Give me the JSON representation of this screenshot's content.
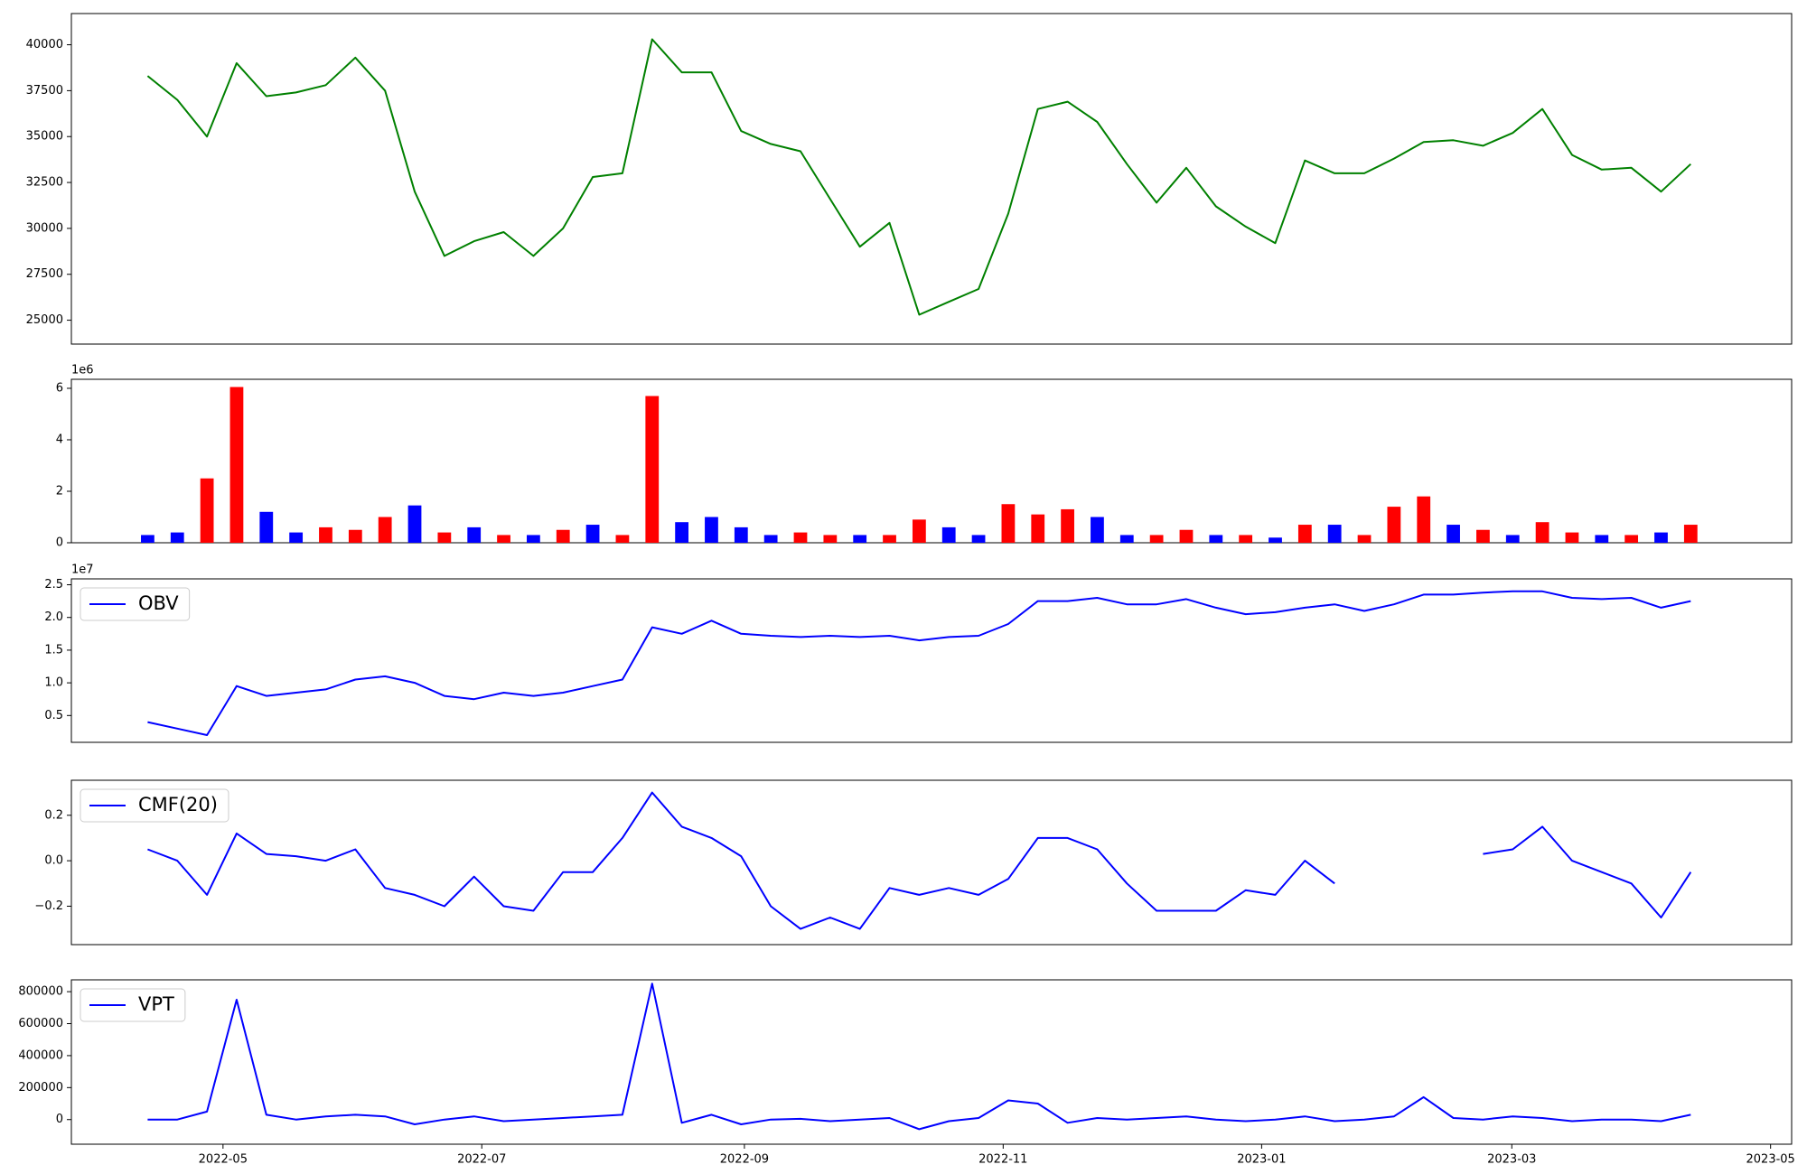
{
  "chart_data": [
    {
      "type": "line",
      "color": "green",
      "values": [
        38300,
        37000,
        35000,
        39000,
        37200,
        37400,
        37800,
        39300,
        37500,
        32000,
        28500,
        29300,
        29800,
        28500,
        30000,
        32800,
        33000,
        40300,
        38500,
        38500,
        35300,
        34600,
        34200,
        31600,
        29000,
        30300,
        25300,
        26000,
        26700,
        30800,
        36500,
        36900,
        35800,
        33500,
        31400,
        33300,
        31200,
        30100,
        29200,
        33700,
        33000,
        33000,
        33800,
        34700,
        34800,
        34500,
        35200,
        36500,
        34000,
        33200,
        33300,
        32000,
        33500
      ],
      "xlim": [
        -2.57,
        55.4
      ],
      "ylim": [
        23700,
        41700
      ],
      "yticks": [
        25000,
        27500,
        30000,
        32500,
        35000,
        37500,
        40000
      ]
    },
    {
      "type": "bar",
      "offset_label": "1e6",
      "values": [
        0.3,
        0.4,
        2.5,
        6.05,
        1.2,
        0.4,
        0.6,
        0.5,
        1.0,
        1.45,
        0.4,
        0.6,
        0.3,
        0.3,
        0.5,
        0.7,
        0.3,
        5.7,
        0.8,
        1.0,
        0.6,
        0.3,
        0.4,
        0.3,
        0.3,
        0.3,
        0.9,
        0.6,
        0.3,
        1.5,
        1.1,
        1.3,
        1.0,
        0.3,
        0.3,
        0.5,
        0.3,
        0.3,
        0.2,
        0.7,
        0.7,
        0.3,
        1.4,
        1.8,
        0.7,
        0.5,
        0.3,
        0.8,
        0.4,
        0.3,
        0.3,
        0.4,
        0.7
      ],
      "colors": [
        "blue",
        "blue",
        "red",
        "red",
        "blue",
        "blue",
        "red",
        "red",
        "red",
        "blue",
        "red",
        "blue",
        "red",
        "blue",
        "red",
        "blue",
        "red",
        "red",
        "blue",
        "blue",
        "blue",
        "blue",
        "red",
        "red",
        "blue",
        "red",
        "red",
        "blue",
        "blue",
        "red",
        "red",
        "red",
        "blue",
        "blue",
        "red",
        "red",
        "blue",
        "red",
        "blue",
        "red",
        "blue",
        "red",
        "red",
        "red",
        "blue",
        "red",
        "blue",
        "red",
        "red",
        "blue",
        "red",
        "blue",
        "red"
      ],
      "xlim": [
        -2.57,
        55.4
      ],
      "ylim": [
        0,
        6.35
      ],
      "yticks": [
        0,
        2,
        4,
        6
      ]
    },
    {
      "type": "line",
      "offset_label": "1e7",
      "legend": "upper left",
      "series": [
        {
          "name": "OBV",
          "color": "blue",
          "values": [
            0.4,
            0.3,
            0.2,
            0.95,
            0.8,
            0.85,
            0.9,
            1.05,
            1.1,
            1.0,
            0.8,
            0.75,
            0.85,
            0.8,
            0.85,
            0.95,
            1.05,
            1.85,
            1.75,
            1.95,
            1.75,
            1.72,
            1.7,
            1.72,
            1.7,
            1.72,
            1.65,
            1.7,
            1.72,
            1.9,
            2.25,
            2.25,
            2.3,
            2.2,
            2.2,
            2.28,
            2.15,
            2.05,
            2.08,
            2.15,
            2.2,
            2.1,
            2.2,
            2.35,
            2.35,
            2.38,
            2.4,
            2.4,
            2.3,
            2.28,
            2.3,
            2.15,
            2.25
          ]
        }
      ],
      "xlim": [
        -2.57,
        55.4
      ],
      "ylim": [
        0.09,
        2.59
      ],
      "yticks": [
        0.5,
        {
          "value": 1,
          "label": "1.0"
        },
        1.5,
        {
          "value": 2,
          "label": "2.0"
        },
        2.5
      ]
    },
    {
      "type": "line",
      "legend": "upper left",
      "series": [
        {
          "name": "CMF(20)",
          "color": "blue",
          "values": [
            0.05,
            0.0,
            -0.15,
            0.12,
            0.03,
            0.02,
            0.0,
            0.05,
            -0.12,
            -0.15,
            -0.2,
            -0.07,
            -0.2,
            -0.22,
            -0.05,
            -0.05,
            0.1,
            0.3,
            0.15,
            0.1,
            0.02,
            -0.2,
            -0.3,
            -0.25,
            -0.3,
            -0.12,
            -0.15,
            -0.12,
            -0.15,
            -0.08,
            0.1,
            0.1,
            0.05,
            -0.1,
            -0.22,
            -0.22,
            -0.22,
            -0.13,
            -0.15,
            0.0,
            -0.1,
            null,
            null,
            null,
            null,
            0.03,
            0.05,
            0.15,
            0.0,
            -0.05,
            -0.1,
            -0.25,
            -0.05
          ]
        }
      ],
      "xlim": [
        -2.57,
        55.4
      ],
      "ylim": [
        -0.369,
        0.354
      ],
      "yticks": [
        {
          "value": -0.2,
          "label": "−0.2"
        },
        {
          "value": 0,
          "label": "0.0"
        },
        0.2
      ]
    },
    {
      "type": "line",
      "legend": "upper left",
      "series": [
        {
          "name": "VPT",
          "color": "blue",
          "values": [
            0,
            0,
            50000,
            750000,
            30000,
            0,
            20000,
            30000,
            20000,
            -30000,
            0,
            20000,
            -10000,
            0,
            10000,
            20000,
            30000,
            850000,
            -20000,
            30000,
            -30000,
            0,
            5000,
            -10000,
            0,
            10000,
            -60000,
            -10000,
            10000,
            120000,
            100000,
            -20000,
            10000,
            0,
            10000,
            20000,
            0,
            -10000,
            0,
            20000,
            -10000,
            0,
            20000,
            140000,
            10000,
            0,
            20000,
            10000,
            -10000,
            0,
            0,
            -10000,
            30000
          ]
        }
      ],
      "xlim": [
        -2.57,
        55.4
      ],
      "ylim": [
        -154000,
        874000
      ],
      "yticks": [
        0,
        200000,
        400000,
        600000,
        800000
      ],
      "xticks": [
        {
          "value": 2.54,
          "label": "2022-05"
        },
        {
          "value": 11.26,
          "label": "2022-07"
        },
        {
          "value": 20.11,
          "label": "2022-09"
        },
        {
          "value": 28.83,
          "label": "2022-11"
        },
        {
          "value": 37.54,
          "label": "2023-01"
        },
        {
          "value": 45.97,
          "label": "2023-03"
        },
        {
          "value": 54.69,
          "label": "2023-05"
        }
      ]
    }
  ]
}
